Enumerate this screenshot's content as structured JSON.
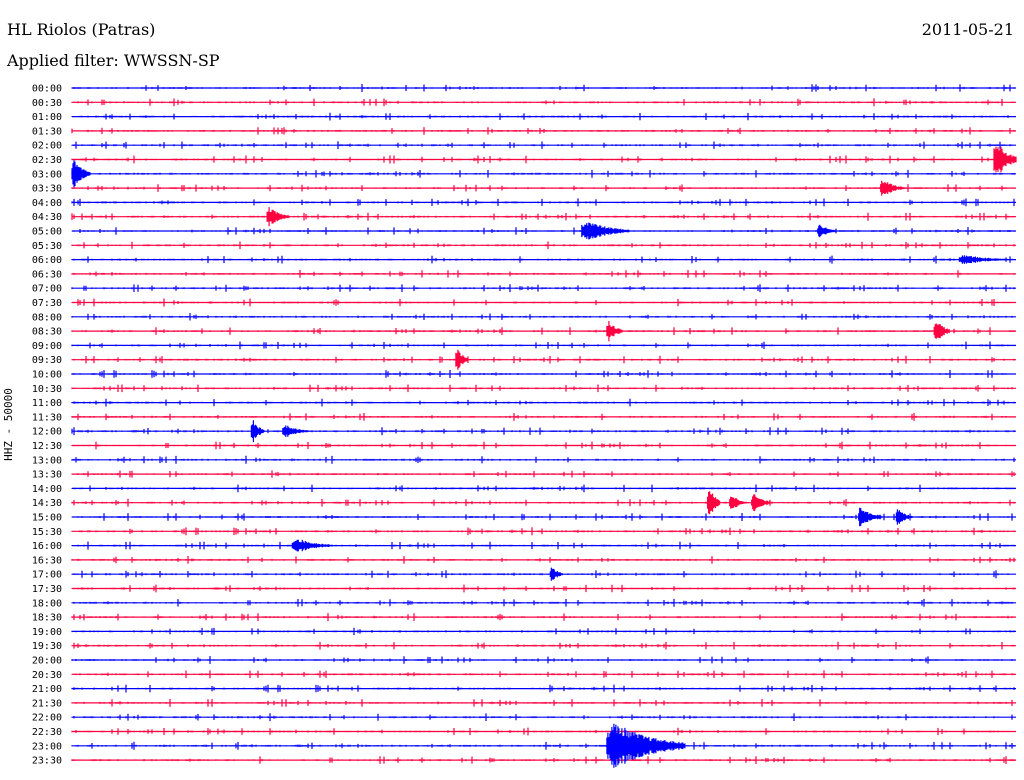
{
  "header": {
    "station": "HL Riolos (Patras)",
    "date": "2011-05-21",
    "filter": "Applied filter: WWSSN-SP"
  },
  "chart_data": {
    "type": "line",
    "title": "HL Riolos (Patras)",
    "ylabel": "HHZ - 50000",
    "row_minutes": 30,
    "colors": {
      "even": "#0000ff",
      "odd": "#ff0040"
    },
    "rows": [
      "00:00",
      "00:30",
      "01:00",
      "01:30",
      "02:00",
      "02:30",
      "03:00",
      "03:30",
      "04:00",
      "04:30",
      "05:00",
      "05:30",
      "06:00",
      "06:30",
      "07:00",
      "07:30",
      "08:00",
      "08:30",
      "09:00",
      "09:30",
      "10:00",
      "10:30",
      "11:00",
      "11:30",
      "12:00",
      "12:30",
      "13:00",
      "13:30",
      "14:00",
      "14:30",
      "15:00",
      "15:30",
      "16:00",
      "16:30",
      "17:00",
      "17:30",
      "18:00",
      "18:30",
      "19:00",
      "19:30",
      "20:00",
      "20:30",
      "21:00",
      "21:30",
      "22:00",
      "22:30",
      "23:00",
      "23:30"
    ],
    "events": [
      {
        "row": "02:30",
        "minute": 29.3,
        "duration": 0.7,
        "amp": 22
      },
      {
        "row": "03:00",
        "minute": 0,
        "duration": 0.6,
        "amp": 14
      },
      {
        "row": "03:30",
        "minute": 25.7,
        "duration": 0.7,
        "amp": 10
      },
      {
        "row": "04:30",
        "minute": 6.2,
        "duration": 0.7,
        "amp": 10
      },
      {
        "row": "05:00",
        "minute": 16.2,
        "duration": 1.5,
        "amp": 11
      },
      {
        "row": "05:00",
        "minute": 23.7,
        "duration": 0.6,
        "amp": 7
      },
      {
        "row": "06:00",
        "minute": 28.2,
        "duration": 1.6,
        "amp": 5
      },
      {
        "row": "08:30",
        "minute": 17.0,
        "duration": 0.5,
        "amp": 12
      },
      {
        "row": "08:30",
        "minute": 27.4,
        "duration": 0.5,
        "amp": 14
      },
      {
        "row": "09:30",
        "minute": 12.2,
        "duration": 0.4,
        "amp": 12
      },
      {
        "row": "12:00",
        "minute": 5.7,
        "duration": 0.4,
        "amp": 14
      },
      {
        "row": "12:00",
        "minute": 6.7,
        "duration": 0.8,
        "amp": 7
      },
      {
        "row": "14:30",
        "minute": 20.2,
        "duration": 0.4,
        "amp": 18
      },
      {
        "row": "14:30",
        "minute": 20.9,
        "duration": 0.5,
        "amp": 10
      },
      {
        "row": "14:30",
        "minute": 21.6,
        "duration": 0.6,
        "amp": 10
      },
      {
        "row": "15:00",
        "minute": 25.0,
        "duration": 0.7,
        "amp": 12
      },
      {
        "row": "15:00",
        "minute": 26.2,
        "duration": 0.5,
        "amp": 9
      },
      {
        "row": "16:00",
        "minute": 7.0,
        "duration": 1.3,
        "amp": 8
      },
      {
        "row": "17:00",
        "minute": 15.2,
        "duration": 0.4,
        "amp": 9
      },
      {
        "row": "23:00",
        "minute": 17.0,
        "duration": 2.5,
        "amp": 24
      }
    ]
  }
}
